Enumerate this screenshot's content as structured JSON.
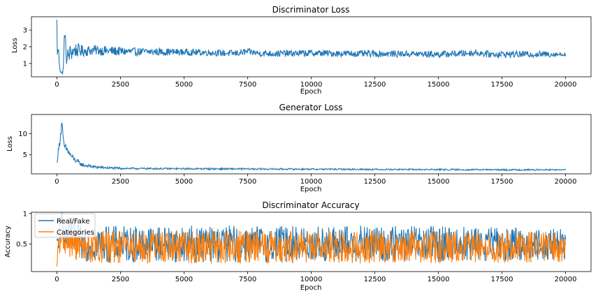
{
  "chart_data": [
    {
      "type": "line",
      "title": "Discriminator Loss",
      "xlabel": "Epoch",
      "ylabel": "Loss",
      "xlim": [
        -1000,
        21000
      ],
      "ylim": [
        0.2,
        3.8
      ],
      "xticks": [
        0,
        2500,
        5000,
        7500,
        10000,
        12500,
        15000,
        17500,
        20000
      ],
      "yticks": [
        1,
        2,
        3
      ],
      "grid": false,
      "color": "#1f77b4",
      "series": [
        {
          "x": [
            0,
            20,
            60,
            100,
            150,
            200,
            260,
            300,
            350,
            400,
            500,
            700,
            1000,
            1500,
            2000,
            3000,
            4000,
            5000,
            6000,
            7000,
            7500,
            8000,
            9000,
            10000,
            11000,
            12000,
            13000,
            14000,
            15000,
            16000,
            16500,
            17000,
            18000,
            19000,
            20000
          ],
          "values": [
            3.6,
            1.5,
            1.9,
            1.0,
            0.5,
            0.4,
            0.7,
            3.1,
            1.8,
            1.3,
            1.6,
            1.8,
            1.75,
            1.8,
            1.75,
            1.7,
            1.7,
            1.68,
            1.65,
            1.6,
            1.7,
            1.6,
            1.6,
            1.62,
            1.6,
            1.58,
            1.58,
            1.57,
            1.55,
            1.6,
            1.65,
            1.55,
            1.55,
            1.55,
            1.55
          ],
          "band": [
            0.05,
            0.3,
            0.3,
            0.3,
            0.15,
            0.15,
            0.2,
            0.3,
            0.6,
            0.6,
            0.55,
            0.45,
            0.35,
            0.3,
            0.3,
            0.25,
            0.22,
            0.2,
            0.2,
            0.2,
            0.2,
            0.2,
            0.2,
            0.2,
            0.2,
            0.2,
            0.2,
            0.2,
            0.2,
            0.2,
            0.2,
            0.2,
            0.2,
            0.2,
            0.12
          ]
        }
      ]
    },
    {
      "type": "line",
      "title": "Generator Loss",
      "xlabel": "Epoch",
      "ylabel": "Loss",
      "xlim": [
        -1000,
        21000
      ],
      "ylim": [
        0.5,
        14.5
      ],
      "xticks": [
        0,
        2500,
        5000,
        7500,
        10000,
        12500,
        15000,
        17500,
        20000
      ],
      "yticks": [
        5,
        10
      ],
      "grid": false,
      "color": "#1f77b4",
      "series": [
        {
          "x": [
            0,
            50,
            100,
            150,
            200,
            250,
            300,
            400,
            500,
            700,
            1000,
            1500,
            2000,
            2500,
            3000,
            5000,
            7500,
            10000,
            12500,
            15000,
            17500,
            20000
          ],
          "values": [
            3.0,
            5.5,
            7.5,
            10.0,
            13.0,
            8.0,
            6.8,
            6.2,
            5.2,
            3.8,
            2.6,
            2.1,
            1.9,
            1.8,
            1.75,
            1.7,
            1.65,
            1.6,
            1.55,
            1.5,
            1.45,
            1.45
          ],
          "band": [
            0.3,
            0.8,
            1.0,
            1.2,
            1.0,
            1.0,
            1.0,
            0.9,
            0.8,
            0.6,
            0.45,
            0.35,
            0.3,
            0.25,
            0.2,
            0.2,
            0.2,
            0.18,
            0.18,
            0.18,
            0.18,
            0.15
          ]
        }
      ]
    },
    {
      "type": "line",
      "title": "Discriminator Accuracy",
      "xlabel": "Epoch",
      "ylabel": "Accuracy",
      "xlim": [
        -1000,
        21000
      ],
      "ylim": [
        0.05,
        1.02
      ],
      "xticks": [
        0,
        2500,
        5000,
        7500,
        10000,
        12500,
        15000,
        17500,
        20000
      ],
      "yticks": [
        0.5,
        1.0
      ],
      "legend_position": "upper-left",
      "grid": false,
      "series": [
        {
          "name": "Real/Fake",
          "color": "#1f77b4",
          "x": [
            0,
            100,
            200,
            300,
            400,
            600,
            1000,
            2000,
            5000,
            10000,
            15000,
            20000
          ],
          "values": [
            0.5,
            0.6,
            1.0,
            0.55,
            0.65,
            0.6,
            0.5,
            0.5,
            0.5,
            0.5,
            0.5,
            0.5
          ],
          "band": [
            0.1,
            0.2,
            0.05,
            0.15,
            0.3,
            0.3,
            0.28,
            0.3,
            0.3,
            0.3,
            0.3,
            0.25
          ]
        },
        {
          "name": "Categories",
          "color": "#ff7f0e",
          "x": [
            0,
            50,
            100,
            200,
            300,
            500,
            1000,
            2000,
            5000,
            10000,
            15000,
            20000
          ],
          "values": [
            0.1,
            0.4,
            0.5,
            0.6,
            0.55,
            0.5,
            0.45,
            0.45,
            0.45,
            0.45,
            0.45,
            0.45
          ],
          "band": [
            0.05,
            0.25,
            0.3,
            0.2,
            0.2,
            0.22,
            0.25,
            0.27,
            0.27,
            0.27,
            0.27,
            0.25
          ]
        }
      ]
    }
  ]
}
